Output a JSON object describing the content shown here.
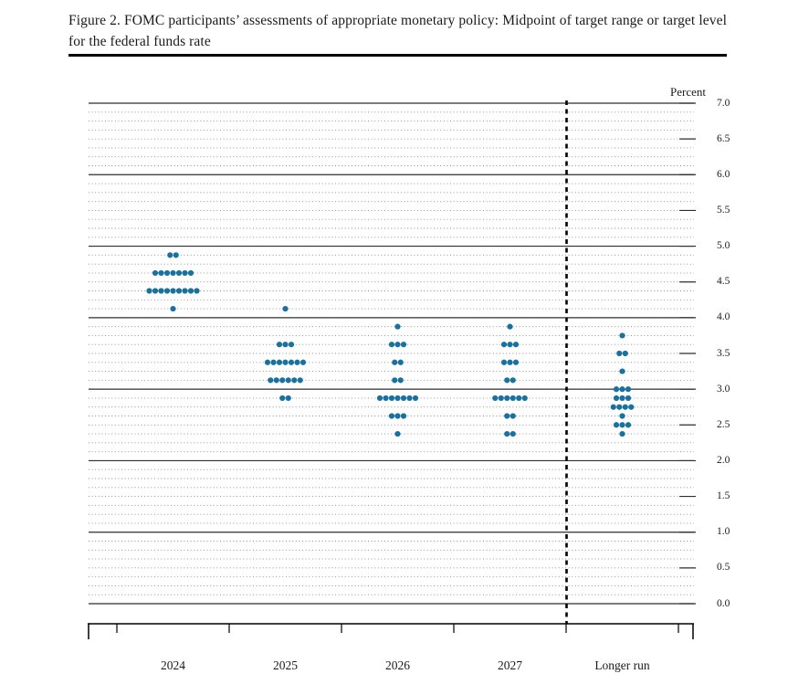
{
  "chart_data": {
    "type": "scatter",
    "variant": "fomc-dot-plot",
    "figure_title": "Figure 2.  FOMC participants’ assessments of appropriate monetary policy:  Midpoint of target range or target level for the federal funds rate",
    "unit_label": "Percent",
    "categories": [
      "2024",
      "2025",
      "2026",
      "2027",
      "Longer run"
    ],
    "y_axis": {
      "min": 0.0,
      "max": 7.0,
      "grid_step": 0.125,
      "solid_line_step": 1.0,
      "tick_step": 0.5,
      "tick_labels": [
        "7.0",
        "6.5",
        "6.0",
        "5.5",
        "5.0",
        "4.5",
        "4.0",
        "3.5",
        "3.0",
        "2.5",
        "2.0",
        "1.5",
        "1.0",
        "0.5",
        "0.0"
      ]
    },
    "series": [
      {
        "category": "2024",
        "distribution": [
          {
            "rate": 4.875,
            "count": 2
          },
          {
            "rate": 4.625,
            "count": 7
          },
          {
            "rate": 4.375,
            "count": 9
          },
          {
            "rate": 4.125,
            "count": 1
          }
        ]
      },
      {
        "category": "2025",
        "distribution": [
          {
            "rate": 4.125,
            "count": 1
          },
          {
            "rate": 3.625,
            "count": 3
          },
          {
            "rate": 3.375,
            "count": 7
          },
          {
            "rate": 3.125,
            "count": 6
          },
          {
            "rate": 2.875,
            "count": 2
          }
        ]
      },
      {
        "category": "2026",
        "distribution": [
          {
            "rate": 3.875,
            "count": 1
          },
          {
            "rate": 3.625,
            "count": 3
          },
          {
            "rate": 3.375,
            "count": 2
          },
          {
            "rate": 3.125,
            "count": 2
          },
          {
            "rate": 2.875,
            "count": 7
          },
          {
            "rate": 2.625,
            "count": 3
          },
          {
            "rate": 2.375,
            "count": 1
          }
        ]
      },
      {
        "category": "2027",
        "distribution": [
          {
            "rate": 3.875,
            "count": 1
          },
          {
            "rate": 3.625,
            "count": 3
          },
          {
            "rate": 3.375,
            "count": 3
          },
          {
            "rate": 3.125,
            "count": 2
          },
          {
            "rate": 2.875,
            "count": 6
          },
          {
            "rate": 2.625,
            "count": 2
          },
          {
            "rate": 2.375,
            "count": 2
          }
        ]
      },
      {
        "category": "Longer run",
        "distribution": [
          {
            "rate": 3.75,
            "count": 1
          },
          {
            "rate": 3.5,
            "count": 2
          },
          {
            "rate": 3.25,
            "count": 1
          },
          {
            "rate": 3.0,
            "count": 3
          },
          {
            "rate": 2.875,
            "count": 3
          },
          {
            "rate": 2.75,
            "count": 4
          },
          {
            "rate": 2.625,
            "count": 1
          },
          {
            "rate": 2.5,
            "count": 3
          },
          {
            "rate": 2.375,
            "count": 1
          }
        ]
      }
    ],
    "dot_color": "#18719f",
    "separator_before_category": "Longer run",
    "legend": "none",
    "grid": "dotted-horizontal"
  }
}
